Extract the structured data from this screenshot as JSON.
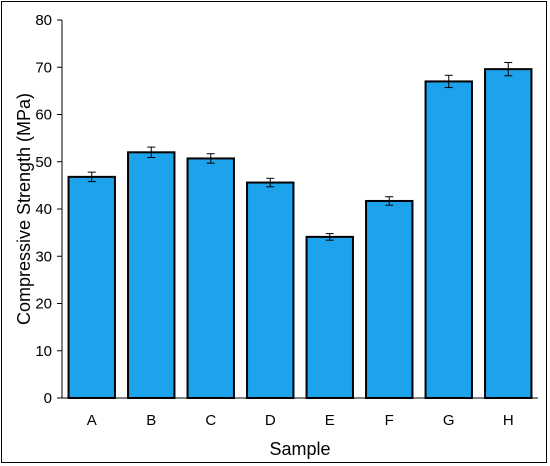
{
  "chart_data": {
    "type": "bar",
    "title": "",
    "xlabel": "Sample",
    "ylabel": "Compressive Strength (MPa)",
    "categories": [
      "A",
      "B",
      "C",
      "D",
      "E",
      "F",
      "G",
      "H"
    ],
    "values": [
      46.8,
      52.0,
      50.7,
      45.6,
      34.1,
      41.7,
      67.0,
      69.6
    ],
    "errors": [
      1.0,
      1.1,
      1.0,
      0.9,
      0.7,
      0.9,
      1.3,
      1.4
    ],
    "ylim": [
      0,
      80
    ],
    "yticks": [
      0,
      10,
      20,
      30,
      40,
      50,
      60,
      70,
      80
    ],
    "grid": false,
    "legend": "none",
    "colors": {
      "bar_fill": "#1CA3EC",
      "bar_stroke": "#000000",
      "axis": "#000000",
      "error_bar": "#000000"
    }
  }
}
